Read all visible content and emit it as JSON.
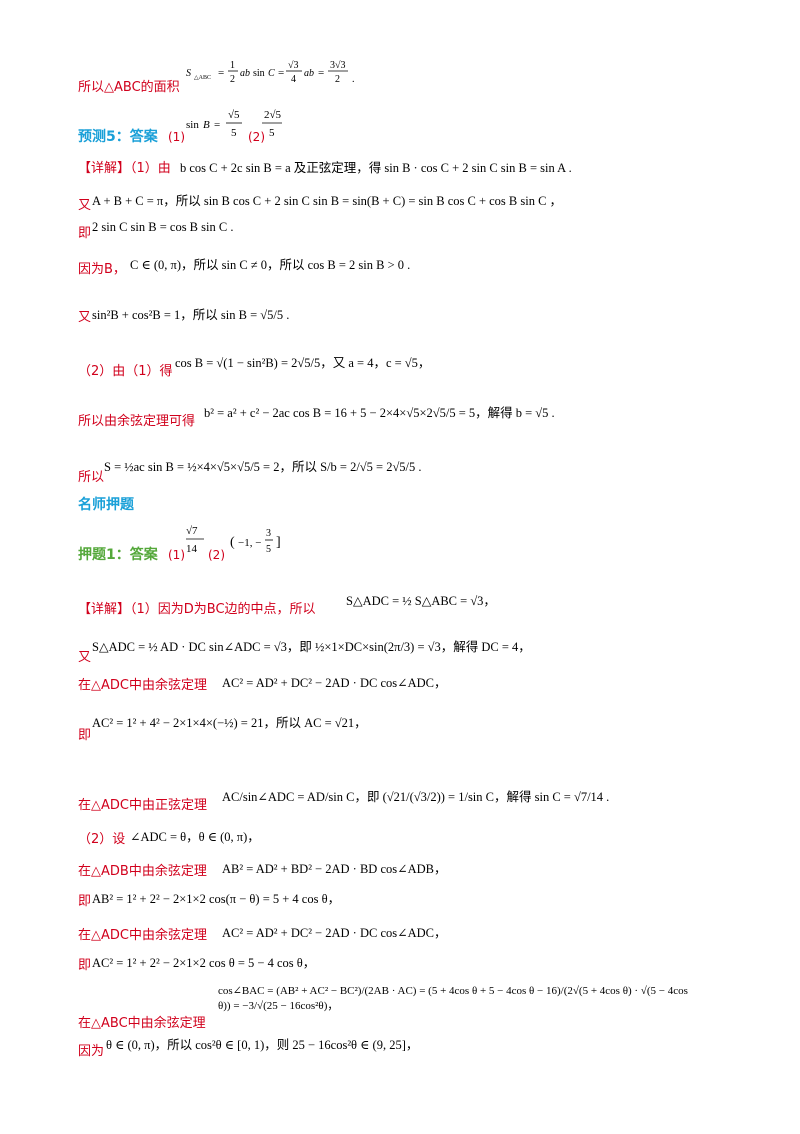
{
  "lines": [
    {
      "text": "所以△ABC的面积",
      "math": "S△ABC = ½ab sin C = (√3/4)ab = 3√3/2 ."
    },
    {
      "heading": "预测5：答案",
      "parts": [
        "(1)",
        "sin B = √5/5",
        "(2)",
        "2√5/5"
      ]
    },
    {
      "text": "【详解】（1）由",
      "math": "b cos C + 2c sin B = a 及正弦定理，得 sin B · cos C + 2 sin C sin B = sin A ."
    },
    {
      "text": "又",
      "math": "A + B + C = π，所以 sin B cos C + 2 sin C sin B = sin(B + C) = sin B cos C + cos B sin C ，"
    },
    {
      "text": "即",
      "math": "2 sin C sin B = cos B sin C ."
    },
    {
      "text": "因为B，",
      "math": "C ∈ (0, π)，所以 sin C ≠ 0，所以 cos B = 2 sin B > 0 ."
    },
    {
      "text": "又",
      "math": "sin²B + cos²B = 1，所以 sin B = √5/5 ."
    },
    {
      "text": "（2）由（1）得",
      "math": "cos B = √(1 − sin²B) = 2√5/5，又 a = 4，c = √5，"
    },
    {
      "text": "所以由余弦定理可得",
      "math": "b² = a² + c² − 2ac cos B = 16 + 5 − 2×4×√5×2√5/5 = 5，解得 b = √5 ."
    },
    {
      "text": "所以",
      "math": "S = ½ac sin B = ½×4×√5×√5/5 = 2，所以 S/b = 2/√5 = 2√5/5 ."
    },
    {
      "heading": "名师押题"
    },
    {
      "heading": "押题1：答案",
      "parts": [
        "(1)",
        "√7/14",
        "(2)",
        "(−1, −3/5]"
      ]
    },
    {
      "text": "【详解】（1）因为D为BC边的中点，所以",
      "math": "S△ADC = ½ S△ABC = √3，"
    },
    {
      "text": "又",
      "math": "S△ADC = ½ AD · DC sin∠ADC = √3，即 ½×1×DC×sin(2π/3) = √3，解得 DC = 4，"
    },
    {
      "text": "在△ADC中由余弦定理",
      "math": "AC² = AD² + DC² − 2AD · DC cos∠ADC，"
    },
    {
      "text": "即",
      "math": "AC² = 1² + 4² − 2×1×4×(−½) = 21，所以 AC = √21，"
    },
    {
      "text": "在△ADC中由正弦定理",
      "math": "AC/sin∠ADC = AD/sin C，即 (√21/(√3/2)) = 1/sin C，解得 sin C = √7/14 ."
    },
    {
      "text": "（2）设",
      "math": "∠ADC = θ，θ ∈ (0, π)，"
    },
    {
      "text": "在△ADB中由余弦定理",
      "math": "AB² = AD² + BD² − 2AD · BD cos∠ADB，"
    },
    {
      "text": "即",
      "math": "AB² = 1² + 2² − 2×1×2 cos(π − θ) = 5 + 4 cos θ，"
    },
    {
      "text": "在△ADC中由余弦定理",
      "math": "AC² = AD² + DC² − 2AD · DC cos∠ADC，"
    },
    {
      "text": "即",
      "math": "AC² = 1² + 2² − 2×1×2 cos θ = 5 − 4 cos θ，"
    },
    {
      "text": "在△ABC中由余弦定理",
      "math": "cos∠BAC = (AB² + AC² − BC²)/(2AB · AC) = (5 + 4cos θ + 5 − 4cos θ − 16)/(2√(5 + 4cos θ) · √(5 − 4cos θ)) = −3/√(25 − 16cos²θ)，"
    },
    {
      "text": "因为",
      "math": "θ ∈ (0, π)，所以 cos²θ ∈ [0, 1)，则 25 − 16cos²θ ∈ (9, 25]，"
    }
  ]
}
